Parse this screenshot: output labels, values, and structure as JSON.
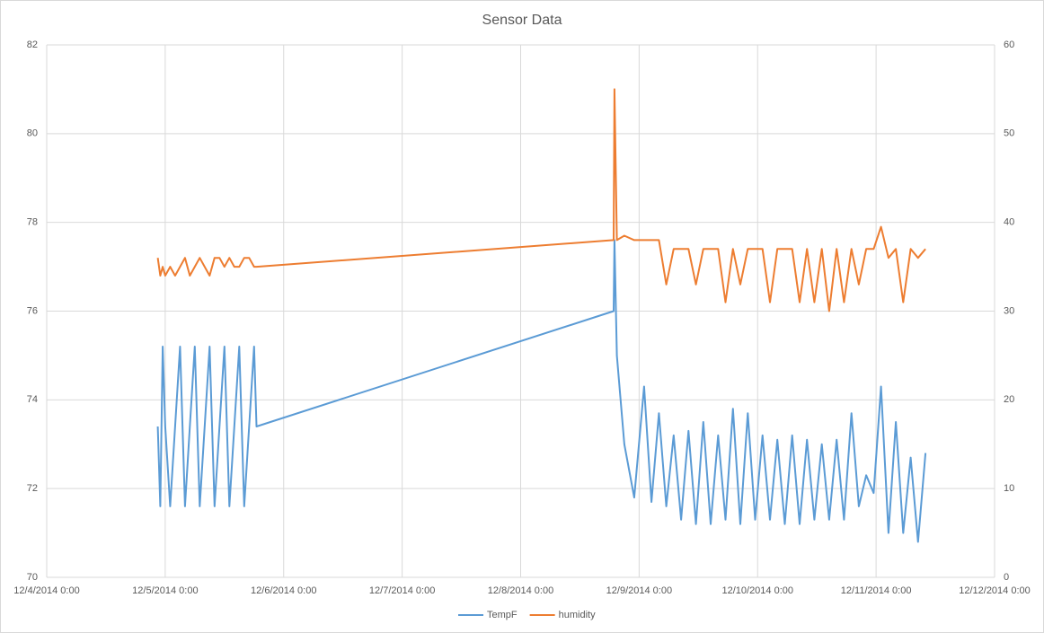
{
  "chart_data": {
    "type": "line",
    "title": "Sensor Data",
    "x": [
      "12/4/2014 22:30",
      "12/4/2014 23:00",
      "12/4/2014 23:30",
      "12/5/2014 0:00",
      "12/5/2014 1:00",
      "12/5/2014 2:00",
      "12/5/2014 3:00",
      "12/5/2014 4:00",
      "12/5/2014 5:00",
      "12/5/2014 6:00",
      "12/5/2014 7:00",
      "12/5/2014 8:00",
      "12/5/2014 9:00",
      "12/5/2014 10:00",
      "12/5/2014 11:00",
      "12/5/2014 12:00",
      "12/5/2014 13:00",
      "12/5/2014 14:00",
      "12/5/2014 15:00",
      "12/5/2014 16:00",
      "12/5/2014 17:00",
      "12/5/2014 18:00",
      "12/5/2014 18:30",
      "12/8/2014 18:50",
      "12/8/2014 19:00",
      "12/8/2014 19:30",
      "12/8/2014 21:00",
      "12/8/2014 23:00",
      "12/9/2014 1:00",
      "12/9/2014 2:30",
      "12/9/2014 4:00",
      "12/9/2014 5:30",
      "12/9/2014 7:00",
      "12/9/2014 8:30",
      "12/9/2014 10:00",
      "12/9/2014 11:30",
      "12/9/2014 13:00",
      "12/9/2014 14:30",
      "12/9/2014 16:00",
      "12/9/2014 17:30",
      "12/9/2014 19:00",
      "12/9/2014 20:30",
      "12/9/2014 22:00",
      "12/9/2014 23:30",
      "12/10/2014 1:00",
      "12/10/2014 2:30",
      "12/10/2014 4:00",
      "12/10/2014 5:30",
      "12/10/2014 7:00",
      "12/10/2014 8:30",
      "12/10/2014 10:00",
      "12/10/2014 11:30",
      "12/10/2014 13:00",
      "12/10/2014 14:30",
      "12/10/2014 16:00",
      "12/10/2014 17:30",
      "12/10/2014 19:00",
      "12/10/2014 20:30",
      "12/10/2014 22:00",
      "12/10/2014 23:30",
      "12/11/2014 1:00",
      "12/11/2014 2:30",
      "12/11/2014 4:00",
      "12/11/2014 5:30",
      "12/11/2014 7:00",
      "12/11/2014 8:30",
      "12/11/2014 10:00"
    ],
    "series": [
      {
        "name": "TempF",
        "color": "#5b9bd5",
        "values": [
          73.4,
          71.6,
          75.2,
          73.4,
          71.6,
          73.4,
          75.2,
          71.6,
          73.4,
          75.2,
          71.6,
          73.4,
          75.2,
          71.6,
          73.4,
          75.2,
          71.6,
          73.4,
          75.2,
          71.6,
          73.4,
          75.2,
          73.4,
          76,
          77.6,
          75,
          73,
          71.8,
          74.3,
          71.7,
          73.7,
          71.6,
          73.2,
          71.3,
          73.3,
          71.2,
          73.5,
          71.2,
          73.2,
          71.3,
          73.8,
          71.2,
          73.7,
          71.3,
          73.2,
          71.3,
          73.1,
          71.2,
          73.2,
          71.2,
          73.1,
          71.3,
          73.0,
          71.3,
          73.1,
          71.3,
          73.7,
          71.6,
          72.3,
          71.9,
          74.3,
          71.0,
          73.5,
          71.0,
          72.7,
          70.8,
          72.8
        ]
      },
      {
        "name": "humidity",
        "color": "#ed7d31",
        "axis": "y2",
        "values": [
          36,
          34,
          35,
          34,
          35,
          34,
          35,
          36,
          34,
          35,
          36,
          35,
          34,
          36,
          36,
          35,
          36,
          35,
          35,
          36,
          36,
          35,
          35,
          38,
          55,
          38,
          38.5,
          38,
          38,
          38,
          38,
          33,
          37,
          37,
          37,
          33,
          37,
          37,
          37,
          31,
          37,
          33,
          37,
          37,
          37,
          31,
          37,
          37,
          37,
          31,
          37,
          31,
          37,
          30,
          37,
          31,
          37,
          33,
          37,
          37,
          39.5,
          36,
          37,
          31,
          37,
          36,
          37
        ]
      }
    ],
    "xlim": [
      "12/4/2014 0:00",
      "12/12/2014 0:00"
    ],
    "xticks": [
      "12/4/2014 0:00",
      "12/5/2014 0:00",
      "12/6/2014 0:00",
      "12/7/2014 0:00",
      "12/8/2014 0:00",
      "12/9/2014 0:00",
      "12/10/2014 0:00",
      "12/11/2014 0:00",
      "12/12/2014 0:00"
    ],
    "ylim": [
      70,
      82
    ],
    "yticks": [
      70,
      72,
      74,
      76,
      78,
      80,
      82
    ],
    "y2lim": [
      0,
      60
    ],
    "y2ticks": [
      0,
      10,
      20,
      30,
      40,
      50,
      60
    ],
    "grid": true,
    "legend": "bottom"
  }
}
